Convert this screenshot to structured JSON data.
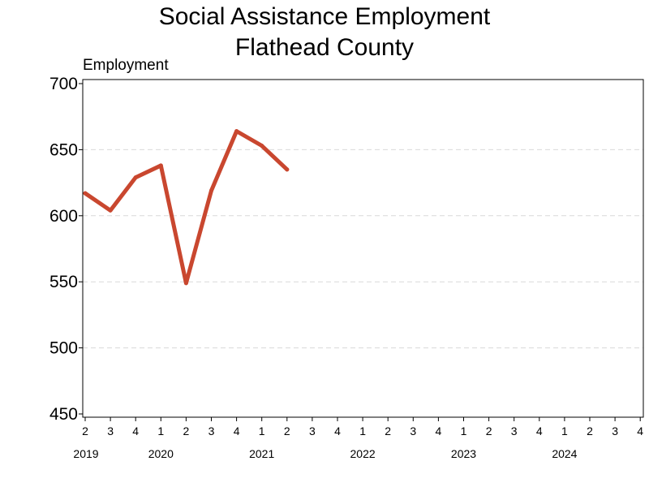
{
  "chart_data": {
    "type": "line",
    "title_lines": [
      "Social Assistance Employment",
      "Flathead County"
    ],
    "ylabel": "Employment",
    "xlabel": "",
    "ylim": [
      450,
      700
    ],
    "yticks": [
      450,
      500,
      550,
      600,
      650,
      700
    ],
    "grid": "horizontal-dashed",
    "colors": {
      "series": "#c9472f",
      "grid": "#d9d9d9",
      "axis": "#000000"
    },
    "x_quarters": [
      "2",
      "3",
      "4",
      "1",
      "2",
      "3",
      "4",
      "1",
      "2",
      "3",
      "4",
      "1",
      "2",
      "3",
      "4",
      "1",
      "2",
      "3",
      "4",
      "1",
      "2",
      "3",
      "4"
    ],
    "year_labels": [
      {
        "label": "2019",
        "at_quarter_index": 0
      },
      {
        "label": "2020",
        "at_quarter_index": 3
      },
      {
        "label": "2021",
        "at_quarter_index": 7
      },
      {
        "label": "2022",
        "at_quarter_index": 11
      },
      {
        "label": "2023",
        "at_quarter_index": 15
      },
      {
        "label": "2024",
        "at_quarter_index": 19
      }
    ],
    "series": [
      {
        "x": [
          "2019 Q2",
          "2019 Q3",
          "2019 Q4",
          "2020 Q1",
          "2020 Q2",
          "2020 Q3",
          "2020 Q4",
          "2021 Q1",
          "2021 Q2"
        ],
        "values": [
          617,
          604,
          629,
          638,
          549,
          619,
          664,
          653,
          635
        ]
      }
    ]
  }
}
